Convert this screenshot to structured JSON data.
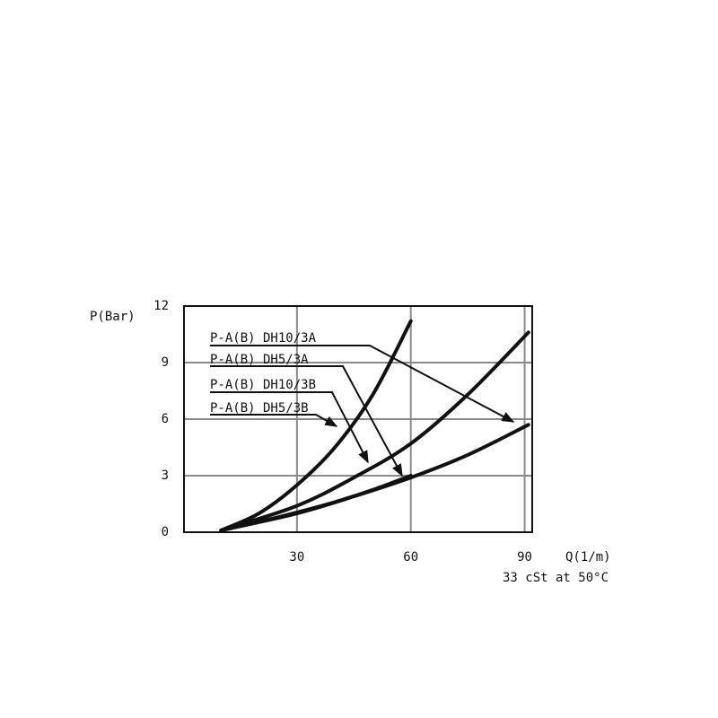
{
  "chart_data": {
    "type": "line",
    "y_label": "P(Bar)",
    "x_label": "Q(1/m)",
    "note": "33 cSt at 50°C",
    "xlim": [
      0,
      92
    ],
    "ylim": [
      0,
      12
    ],
    "xticks": [
      30,
      60,
      90
    ],
    "yticks": [
      0,
      3,
      6,
      9,
      12
    ],
    "grid": true,
    "series": [
      {
        "name": "P-A(B) DH10/3A",
        "color": "#111111",
        "x": [
          10,
          30,
          45,
          60,
          75,
          91
        ],
        "values": [
          0.1,
          1.0,
          1.9,
          2.9,
          4.1,
          5.7
        ]
      },
      {
        "name": "P-A(B) DH5/3A",
        "color": "#111111",
        "x": [
          10,
          20,
          30,
          40,
          50,
          60
        ],
        "values": [
          0.1,
          0.55,
          1.05,
          1.6,
          2.25,
          3.0
        ]
      },
      {
        "name": "P-A(B) DH10/3B",
        "color": "#111111",
        "x": [
          10,
          30,
          45,
          60,
          75,
          91
        ],
        "values": [
          0.1,
          1.4,
          2.9,
          4.7,
          7.3,
          10.6
        ]
      },
      {
        "name": "P-A(B) DH5/3B",
        "color": "#111111",
        "x": [
          10,
          20,
          30,
          40,
          50,
          60
        ],
        "values": [
          0.1,
          1.0,
          2.5,
          4.5,
          7.3,
          11.2
        ]
      }
    ]
  }
}
